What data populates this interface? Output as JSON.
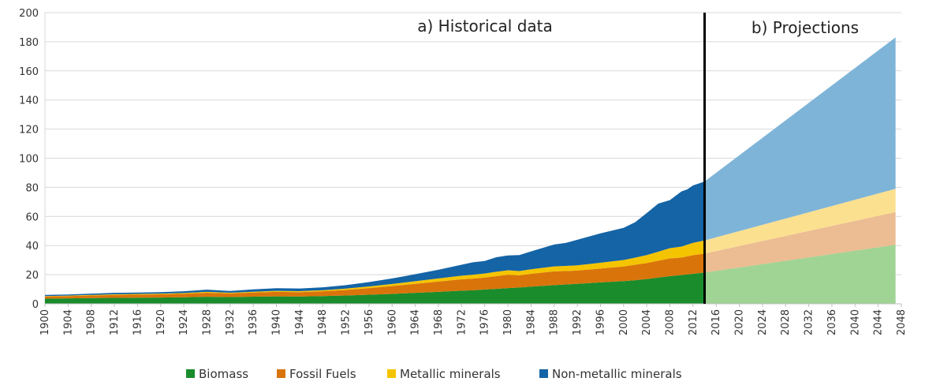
{
  "chart_data": {
    "type": "area",
    "stacked": true,
    "x_range": [
      1900,
      2048
    ],
    "ylim": [
      0,
      200
    ],
    "y_ticks": [
      0,
      20,
      40,
      60,
      80,
      100,
      120,
      140,
      160,
      180,
      200
    ],
    "x_tick_labels": [
      "1900",
      "1904",
      "1908",
      "1912",
      "1916",
      "1920",
      "1924",
      "1928",
      "1932",
      "1936",
      "1940",
      "1944",
      "1948",
      "1952",
      "1956",
      "1960",
      "1964",
      "1968",
      "1972",
      "1976",
      "1980",
      "1984",
      "1988",
      "1992",
      "1996",
      "2000",
      "2004",
      "2008",
      "2012",
      "2016",
      "2020",
      "2024",
      "2028",
      "2032",
      "2036",
      "2040",
      "2044",
      "2048"
    ],
    "grid": true,
    "legend_position": "bottom",
    "divider_year": 2014,
    "sections": {
      "historical": "a) Historical data",
      "projections": "b) Projections"
    },
    "colors": {
      "biomass": "#1a8c2c",
      "fossil": "#d9740b",
      "metallic": "#f5c400",
      "nonmetallic": "#1464a6",
      "biomass_proj": "#a0d494",
      "fossil_proj": "#ecbc92",
      "metallic_proj": "#fbe090",
      "nonmetallic_proj": "#7eb4d8",
      "grid": "#d9d9d9",
      "divider": "#000000"
    },
    "historical": {
      "x": [
        1900,
        1904,
        1908,
        1912,
        1916,
        1920,
        1924,
        1928,
        1932,
        1936,
        1940,
        1944,
        1948,
        1952,
        1956,
        1960,
        1964,
        1968,
        1972,
        1974,
        1976,
        1978,
        1980,
        1982,
        1984,
        1988,
        1990,
        1992,
        1996,
        2000,
        2002,
        2004,
        2006,
        2008,
        2010,
        2011,
        2012,
        2014
      ],
      "series": [
        {
          "name": "Biomass",
          "key": "biomass",
          "values": [
            3.5,
            3.7,
            3.9,
            4.1,
            4.2,
            4.3,
            4.5,
            4.8,
            4.6,
            4.9,
            5.1,
            5.0,
            5.3,
            5.7,
            6.2,
            6.8,
            7.5,
            8.2,
            9.0,
            9.3,
            9.8,
            10.2,
            10.8,
            11.2,
            11.8,
            12.8,
            13.3,
            13.7,
            14.7,
            15.6,
            16.2,
            17.0,
            18.0,
            19.0,
            19.8,
            20.2,
            20.6,
            21.5
          ]
        },
        {
          "name": "Fossil Fuels",
          "key": "fossil",
          "values": [
            1.5,
            1.6,
            1.8,
            2.0,
            2.1,
            2.2,
            2.4,
            2.8,
            2.5,
            2.8,
            3.1,
            3.0,
            3.3,
            3.8,
            4.6,
            5.4,
            6.2,
            7.1,
            7.8,
            8.0,
            8.2,
            8.8,
            9.2,
            8.4,
            8.8,
            9.5,
            9.2,
            9.1,
            9.5,
            10.0,
            10.6,
            11.0,
            11.6,
            12.2,
            12.0,
            12.4,
            12.8,
            13.0
          ]
        },
        {
          "name": "Metallic minerals",
          "key": "metallic",
          "values": [
            0.3,
            0.3,
            0.4,
            0.4,
            0.5,
            0.5,
            0.5,
            0.6,
            0.5,
            0.6,
            0.7,
            0.7,
            0.7,
            0.9,
            1.1,
            1.4,
            1.8,
            2.1,
            2.5,
            2.7,
            2.8,
            3.0,
            3.0,
            2.9,
            3.1,
            3.4,
            3.5,
            3.6,
            4.0,
            4.5,
            4.9,
            5.5,
            6.2,
            7.0,
            7.5,
            8.0,
            8.5,
            9.0
          ]
        },
        {
          "name": "Non-metallic minerals",
          "key": "nonmetallic",
          "values": [
            0.8,
            0.8,
            0.9,
            1.0,
            0.9,
            1.0,
            1.2,
            1.5,
            1.2,
            1.6,
            1.8,
            1.8,
            2.0,
            2.4,
            3.0,
            3.8,
            4.8,
            6.0,
            7.5,
            8.5,
            8.6,
            10.0,
            10.2,
            11.0,
            12.3,
            15.0,
            15.8,
            17.6,
            20.2,
            22.1,
            24.3,
            28.8,
            33.0,
            33.0,
            37.9,
            38.0,
            39.4,
            40.5
          ]
        }
      ]
    },
    "projections": {
      "x": [
        2014,
        2047
      ],
      "series": [
        {
          "name": "Biomass",
          "key": "biomass_proj",
          "values": [
            21.5,
            40.5
          ]
        },
        {
          "name": "Fossil Fuels",
          "key": "fossil_proj",
          "values": [
            13.0,
            22.5
          ]
        },
        {
          "name": "Metallic minerals",
          "key": "metallic_proj",
          "values": [
            9.0,
            16.0
          ]
        },
        {
          "name": "Non-metallic minerals",
          "key": "nonmetallic_proj",
          "values": [
            40.5,
            104.0
          ]
        }
      ]
    },
    "legend": [
      {
        "label": "Biomass",
        "key": "biomass"
      },
      {
        "label": "Fossil Fuels",
        "key": "fossil"
      },
      {
        "label": "Metallic minerals",
        "key": "metallic"
      },
      {
        "label": "Non-metallic minerals",
        "key": "nonmetallic"
      }
    ]
  }
}
